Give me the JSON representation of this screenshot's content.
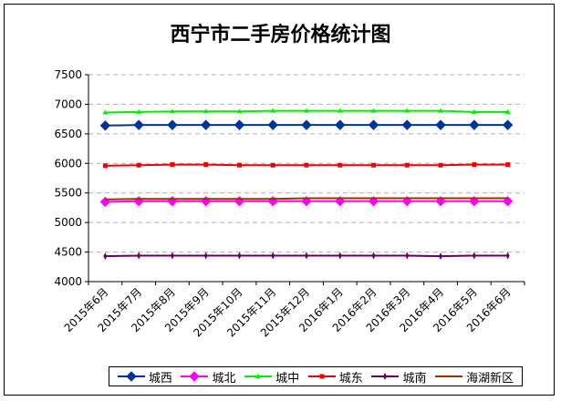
{
  "chart_data": {
    "type": "line",
    "title": "西宁市二手房价格统计图",
    "categories": [
      "2015年6月",
      "2015年7月",
      "2015年8月",
      "2015年9月",
      "2015年10月",
      "2015年11月",
      "2015年12月",
      "2016年1月",
      "2016年2月",
      "2016年3月",
      "2016年4月",
      "2016年5月",
      "2016年6月"
    ],
    "ylim": [
      4000,
      7500
    ],
    "yticks": [
      "7500",
      "7000",
      "6500",
      "6000",
      "5500",
      "5000",
      "4500",
      "4000"
    ],
    "grid": true,
    "legend_position": "bottom",
    "series": [
      {
        "name": "城西",
        "color": "#003399",
        "marker": "diamond",
        "values": [
          6640,
          6650,
          6650,
          6650,
          6650,
          6650,
          6650,
          6650,
          6650,
          6650,
          6650,
          6650,
          6650
        ]
      },
      {
        "name": "城北",
        "color": "#ff00ff",
        "marker": "diamond",
        "values": [
          5350,
          5360,
          5360,
          5360,
          5360,
          5360,
          5360,
          5360,
          5360,
          5360,
          5360,
          5360,
          5360
        ]
      },
      {
        "name": "城中",
        "color": "#00ee00",
        "marker": "triangle",
        "values": [
          6860,
          6870,
          6880,
          6880,
          6880,
          6890,
          6890,
          6890,
          6890,
          6890,
          6890,
          6870,
          6870
        ]
      },
      {
        "name": "城东",
        "color": "#ee0000",
        "marker": "square",
        "values": [
          5960,
          5970,
          5980,
          5980,
          5970,
          5970,
          5970,
          5970,
          5970,
          5970,
          5970,
          5980,
          5980
        ]
      },
      {
        "name": "城南",
        "color": "#660066",
        "marker": "star",
        "values": [
          4430,
          4440,
          4440,
          4440,
          4440,
          4440,
          4440,
          4440,
          4440,
          4440,
          4430,
          4440,
          4440
        ]
      },
      {
        "name": "海湖新区",
        "color": "#993300",
        "marker": "none",
        "values": [
          5390,
          5400,
          5400,
          5400,
          5400,
          5400,
          5410,
          5410,
          5410,
          5410,
          5410,
          5410,
          5410
        ]
      }
    ]
  }
}
